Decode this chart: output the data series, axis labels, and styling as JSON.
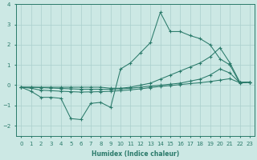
{
  "x": [
    0,
    1,
    2,
    3,
    4,
    5,
    6,
    7,
    8,
    9,
    10,
    11,
    12,
    13,
    14,
    15,
    16,
    17,
    18,
    19,
    20,
    21,
    22,
    23
  ],
  "line_noisy": [
    -0.1,
    -0.3,
    -0.6,
    -0.6,
    -0.65,
    -1.65,
    -1.7,
    -0.9,
    -0.85,
    -1.1,
    0.8,
    1.1,
    1.6,
    2.1,
    3.6,
    2.65,
    2.65,
    2.45,
    2.3,
    2.0,
    1.3,
    1.0,
    0.1,
    0.15
  ],
  "line_rising1": [
    -0.1,
    -0.1,
    -0.1,
    -0.1,
    -0.1,
    -0.1,
    -0.1,
    -0.1,
    -0.1,
    -0.15,
    -0.15,
    -0.1,
    0.0,
    0.1,
    0.3,
    0.5,
    0.7,
    0.9,
    1.1,
    1.4,
    1.85,
    1.1,
    0.15,
    0.15
  ],
  "line_rising2": [
    -0.1,
    -0.1,
    -0.12,
    -0.14,
    -0.16,
    -0.18,
    -0.2,
    -0.2,
    -0.2,
    -0.2,
    -0.18,
    -0.15,
    -0.1,
    -0.05,
    0.0,
    0.05,
    0.1,
    0.2,
    0.3,
    0.5,
    0.8,
    0.6,
    0.12,
    0.15
  ],
  "line_flat": [
    -0.1,
    -0.15,
    -0.25,
    -0.27,
    -0.3,
    -0.32,
    -0.34,
    -0.33,
    -0.32,
    -0.3,
    -0.27,
    -0.23,
    -0.18,
    -0.12,
    -0.06,
    -0.02,
    0.03,
    0.08,
    0.12,
    0.18,
    0.25,
    0.32,
    0.12,
    0.15
  ],
  "bg_color": "#cce8e4",
  "grid_color": "#aacfcc",
  "line_color": "#2a7a6a",
  "xlabel": "Humidex (Indice chaleur)",
  "ylim": [
    -2.5,
    4.0
  ],
  "xlim": [
    -0.5,
    23.5
  ]
}
